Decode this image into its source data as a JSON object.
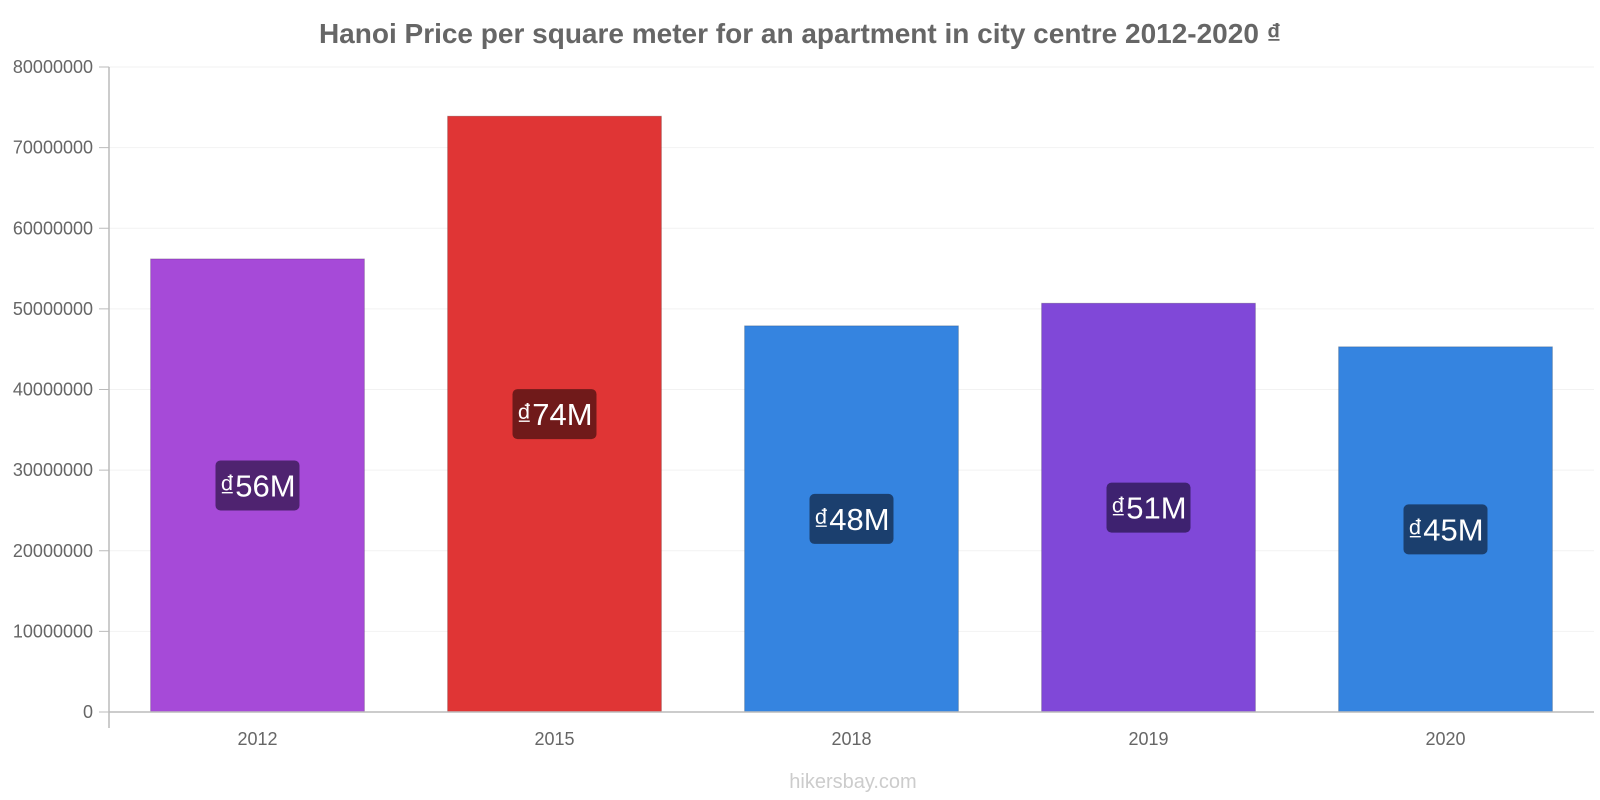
{
  "chart_data": {
    "type": "bar",
    "title": "Hanoi Price per square meter for an apartment in city centre 2012-2020 ₫",
    "categories": [
      "2012",
      "2015",
      "2018",
      "2019",
      "2020"
    ],
    "values": [
      56200000,
      73900000,
      47900000,
      50700000,
      45300000
    ],
    "data_labels": [
      "₫56M",
      "₫74M",
      "₫48M",
      "₫51M",
      "₫45M"
    ],
    "bar_colors": [
      "#a64ad8",
      "#e03535",
      "#3584e0",
      "#8048d8",
      "#3584e0"
    ],
    "label_bg_colors": [
      "#4f2370",
      "#701a1a",
      "#1b3f6e",
      "#3e2270",
      "#1b3f6e"
    ],
    "ylim": [
      0,
      80000000
    ],
    "yticks": [
      "0",
      "10000000",
      "20000000",
      "30000000",
      "40000000",
      "50000000",
      "60000000",
      "70000000",
      "80000000"
    ],
    "xlabel": "",
    "ylabel": "",
    "grid": true,
    "watermark": "hikersbay.com"
  }
}
